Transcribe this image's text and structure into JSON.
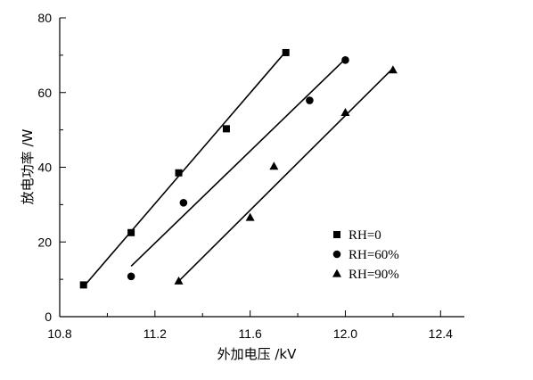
{
  "chart_data": {
    "type": "scatter",
    "title": "",
    "xlabel": "外加电压 /kV",
    "ylabel": "放电功率 /W",
    "xlim": [
      10.8,
      12.5
    ],
    "ylim": [
      0,
      80
    ],
    "xticks": [
      10.8,
      11.2,
      11.6,
      12.0,
      12.4
    ],
    "yticks": [
      0,
      20,
      40,
      60,
      80
    ],
    "xtick_labels": [
      "10.8",
      "11.2",
      "11.6",
      "12.0",
      "12.4"
    ],
    "ytick_labels": [
      "0",
      "20",
      "40",
      "60",
      "80"
    ],
    "grid": false,
    "legend_position": "right",
    "series": [
      {
        "name": "RH=0",
        "marker": "square",
        "x": [
          10.9,
          11.1,
          11.3,
          11.5,
          11.75
        ],
        "y": [
          8.5,
          22.5,
          38.5,
          50.3,
          70.7
        ],
        "fit_line": [
          [
            10.9,
            8.0
          ],
          [
            11.75,
            71.0
          ]
        ]
      },
      {
        "name": "RH=60%",
        "marker": "circle",
        "x": [
          11.1,
          11.32,
          11.85,
          12.0
        ],
        "y": [
          10.8,
          30.5,
          57.9,
          68.7
        ],
        "fit_line": [
          [
            11.1,
            13.5
          ],
          [
            12.0,
            69.0
          ]
        ]
      },
      {
        "name": "RH=90%",
        "marker": "triangle",
        "x": [
          11.3,
          11.6,
          11.7,
          12.0,
          12.2
        ],
        "y": [
          9.5,
          26.5,
          40.2,
          54.6,
          66.0
        ],
        "fit_line": [
          [
            11.3,
            9.5
          ],
          [
            12.2,
            66.5
          ]
        ]
      }
    ]
  }
}
